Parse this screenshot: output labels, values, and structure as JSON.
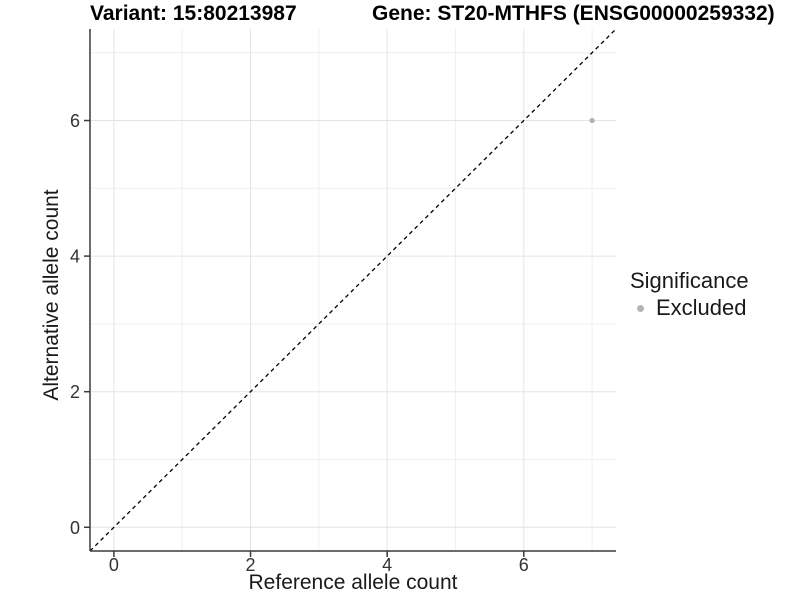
{
  "titles": {
    "variant": "Variant: 15:80213987",
    "gene": "Gene: ST20-MTHFS (ENSG00000259332)"
  },
  "chart_data": {
    "type": "scatter",
    "title_left": "Variant: 15:80213987",
    "title_right": "Gene: ST20-MTHFS (ENSG00000259332)",
    "xlabel": "Reference allele count",
    "ylabel": "Alternative allele count",
    "xlim": [
      -0.35,
      7.35
    ],
    "ylim": [
      -0.35,
      7.35
    ],
    "x_ticks": [
      0,
      2,
      4,
      6
    ],
    "y_ticks": [
      0,
      2,
      4,
      6
    ],
    "x_minor_ticks": [
      1,
      3,
      5,
      7
    ],
    "y_minor_ticks": [
      1,
      3,
      5,
      7
    ],
    "grid": "major+minor",
    "reference_line": {
      "kind": "identity y=x",
      "style": "dashed",
      "color": "#000000"
    },
    "series": [
      {
        "name": "Excluded",
        "color": "#b4b4b4",
        "points": [
          {
            "x": 7,
            "y": 6
          }
        ]
      }
    ],
    "legend": {
      "title": "Significance",
      "position": "right",
      "items": [
        {
          "label": "Excluded",
          "color": "#b4b4b4"
        }
      ]
    }
  },
  "style_colors": {
    "background": "#ffffff",
    "axis_line": "#3a3a3a",
    "tick_text": "#333333",
    "grid_major": "#e4e4e4",
    "grid_minor": "#efefef",
    "point": "#b4b4b4",
    "reference_line": "#000000"
  }
}
